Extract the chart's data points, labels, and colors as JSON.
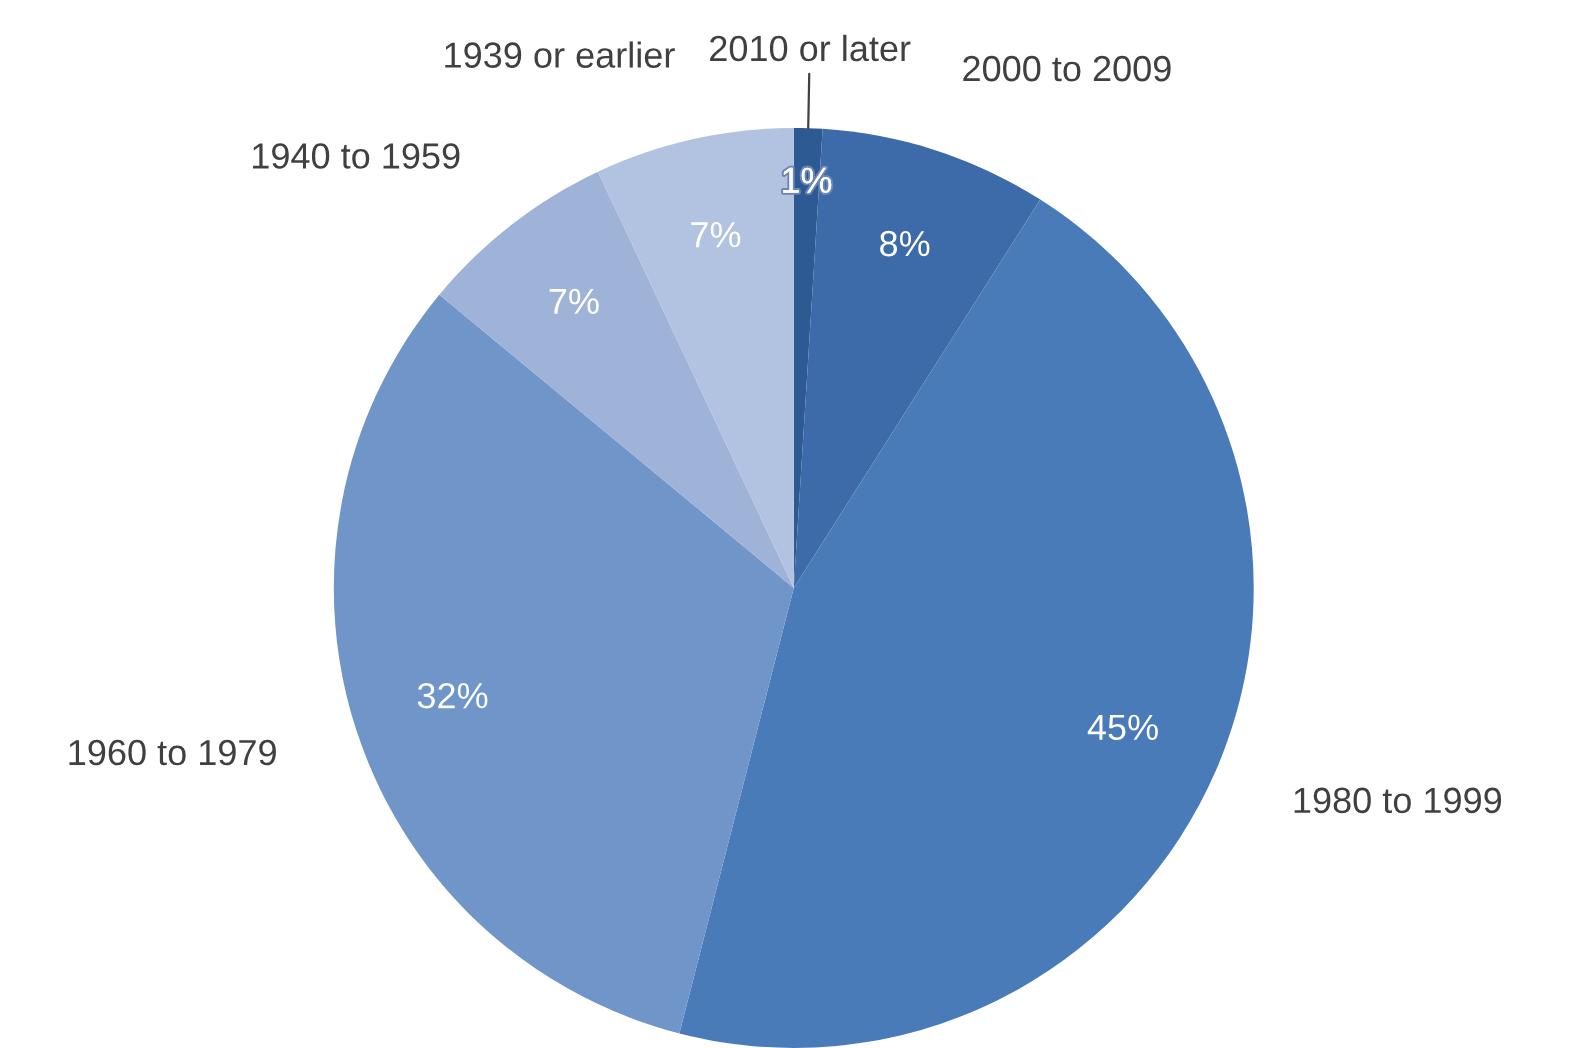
{
  "chart_data": {
    "type": "pie",
    "categories": [
      "2010 or later",
      "2000 to 2009",
      "1980 to 1999",
      "1960 to 1979",
      "1940 to 1959",
      "1939 or earlier"
    ],
    "values": [
      1,
      8,
      45,
      32,
      7,
      7
    ],
    "value_labels": [
      "1%",
      "8%",
      "45%",
      "32%",
      "7%",
      "7%"
    ],
    "colors": [
      "#2d5a93",
      "#3d6aa8",
      "#4a7bb9",
      "#7095c9",
      "#9fb3d9",
      "#b2c2e1"
    ]
  }
}
